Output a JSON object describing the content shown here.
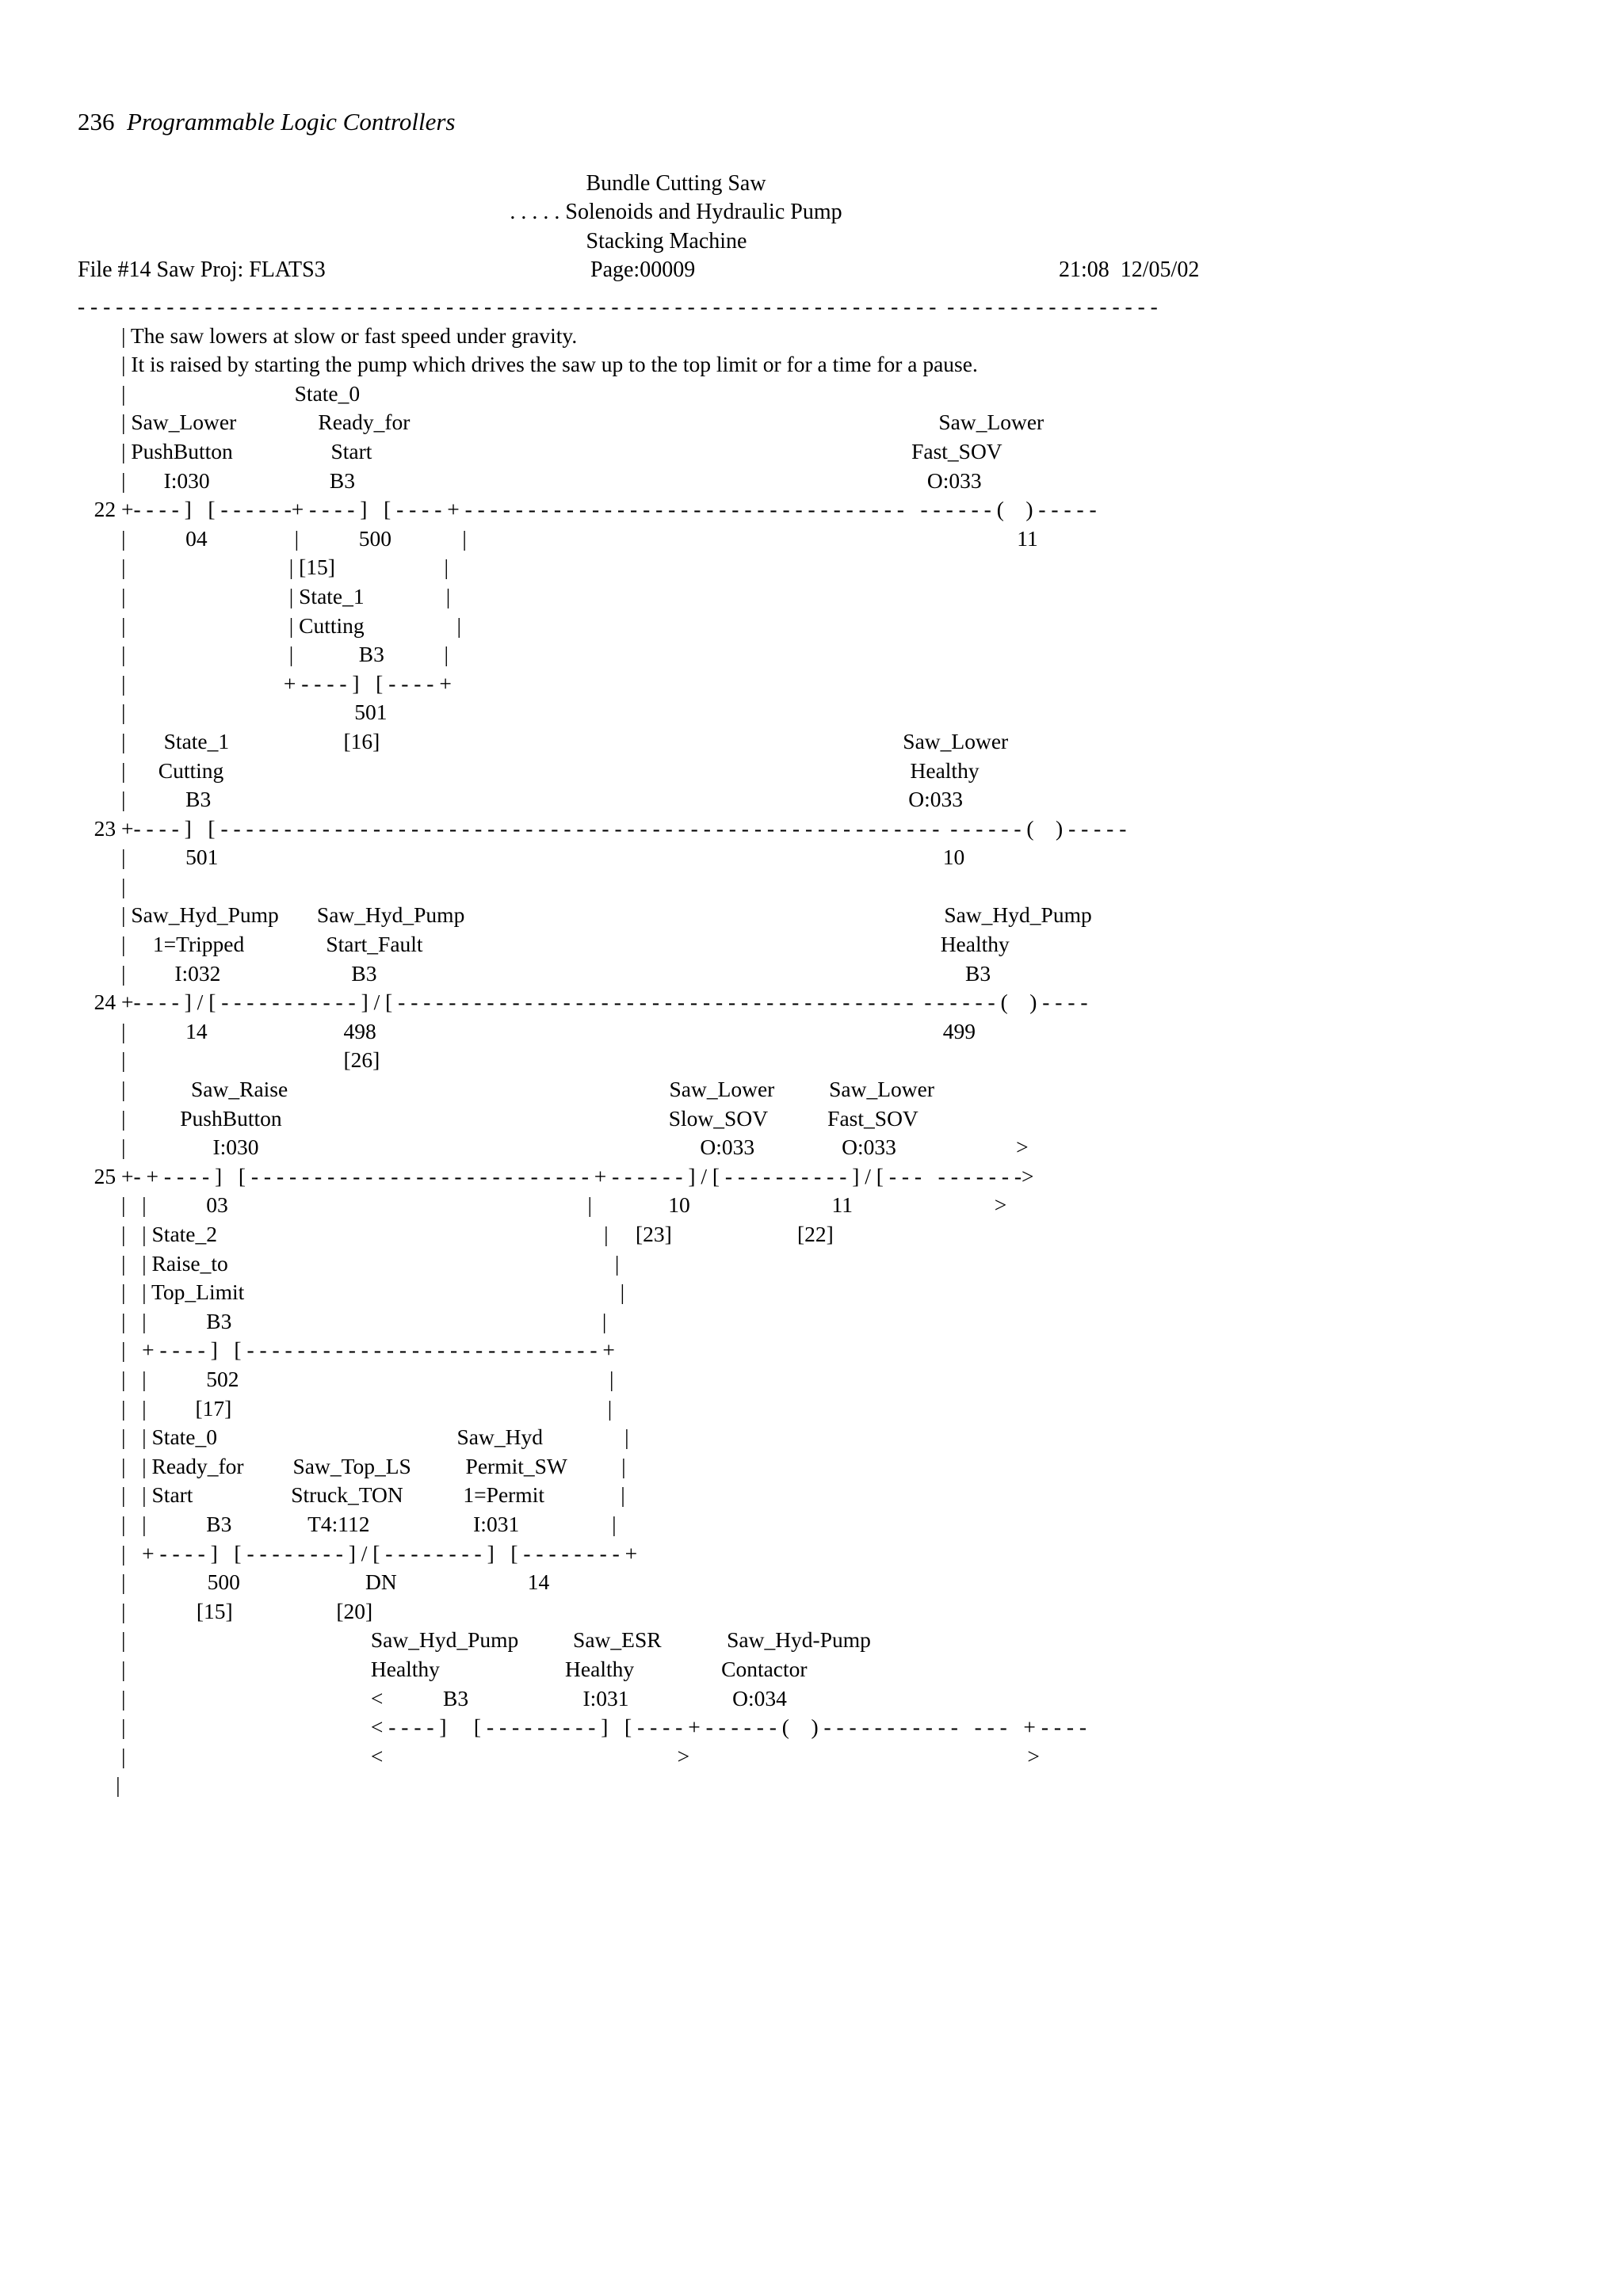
{
  "running_head": {
    "page_number": "236",
    "title": "Programmable Logic Controllers"
  },
  "header": {
    "line1": "Bundle Cutting Saw",
    "line2": ". . . . . Solenoids and Hydraulic Pump",
    "line3": "Stacking Machine",
    "file": "File #14 Saw Proj: FLATS3",
    "page": "Page:00009",
    "timestamp": "21:08  12/05/02"
  },
  "listing": [
    "- - - - - - - - - - - - - - - - - - - - - - - - - - - - - - - - - - - - - - - - - - - - - - - - - - - - - - - - - - - - - - - - - - - -  - - - - - - - - - - - - - - - - -",
    "        | The saw lowers at slow or fast speed under gravity.",
    "        | It is raised by starting the pump which drives the saw up to the top limit or for a time for a pause.",
    "        |                               State_0",
    "        | Saw_Lower               Ready_for                                                                                                 Saw_Lower",
    "        | PushButton                  Start                                                                                                   Fast_SOV",
    "        |       I:030                      B3                                                                                                         O:033",
    "   22 +- - - - ]   [ - - - - - -+ - - - - ]   [ - - - - + - - - - - - - - - - - - - - - - - - - - - - - - - - - - - - - - - - -   - - - - - - (    ) - - - - -",
    "        |           04                |           500             |                                                                                                     11",
    "        |                              | [15]                    |",
    "        |                              | State_1               |",
    "        |                              | Cutting                 |",
    "        |                              |            B3           |",
    "        |                             + - - - - ]   [ - - - - +",
    "        |                                          501",
    "        |       State_1                     [16]                                                                                                Saw_Lower",
    "        |      Cutting                                                                                                                              Healthy",
    "        |           B3                                                                                                                                O:033",
    "   23 +- - - - ]   [ - - - - - - - - - - - - - - - - - - - - - - - - - - - - - - - - - - - - - - - - - - - - - - - - - - - - - - - - -  - - - - - - (    ) - - - - -",
    "        |           501                                                                                                                                     10",
    "        |",
    "        | Saw_Hyd_Pump       Saw_Hyd_Pump                                                                                        Saw_Hyd_Pump",
    "        |     1=Tripped               Start_Fault                                                                                               Healthy",
    "        |         I:032                        B3                                                                                                            B3",
    "   24 +- - - - ] / [ - - - - - - - - - - - ] / [ - - - - - - - - - - - - - - - - - - - - - - - - - - - - - - - - - - - - - - - - -  - - - - - - (    ) - - - -",
    "        |           14                         498                                                                                                        499",
    "        |                                        [26]",
    "        |            Saw_Raise                                                                      Saw_Lower          Saw_Lower",
    "        |          PushButton                                                                       Slow_SOV           Fast_SOV",
    "        |                I:030                                                                                 O:033                O:033                      >",
    "   25 +- + - - - - ]   [ - - - - - - - - - - - - - - - - - - - - - - - - - - - + - - - - - - ] / [ - - - - - - - - - - ] / [ - - -   - - - - - - ->",
    "        |   |           03                                                                  |              10                          11                          >",
    "        |   | State_2                                                                       |     [23]                       [22]",
    "        |   | Raise_to                                                                       |",
    "        |   | Top_Limit                                                                     |",
    "        |   |           B3                                                                    |",
    "        |   + - - - - ]   [ - - - - - - - - - - - - - - - - - - - - - - - - - - - - +",
    "        |   |           502                                                                    |",
    "        |   |         [17]                                                                     |",
    "        |   | State_0                                            Saw_Hyd               |",
    "        |   | Ready_for         Saw_Top_LS          Permit_SW          |",
    "        |   | Start                  Struck_TON           1=Permit              |",
    "        |   |           B3              T4:112                   I:031                 |",
    "        |   + - - - - ]   [ - - - - - - - - ] / [ - - - - - - - - ]   [ - - - - - - - - +",
    "        |               500                       DN                        14",
    "        |             [15]                   [20]",
    "        |                                             Saw_Hyd_Pump          Saw_ESR            Saw_Hyd-Pump",
    "        |                                             Healthy                       Healthy                Contactor",
    "        |                                             <           B3                     I:031                   O:034",
    "        |                                             < - - - - ]     [ - - - - - - - - - ]   [ - - - - + - - - - - - (    ) - - - - - - - - - - -   - - -   + - - - -",
    "        |                                             <                                                      >                                                              >",
    "       |"
  ]
}
